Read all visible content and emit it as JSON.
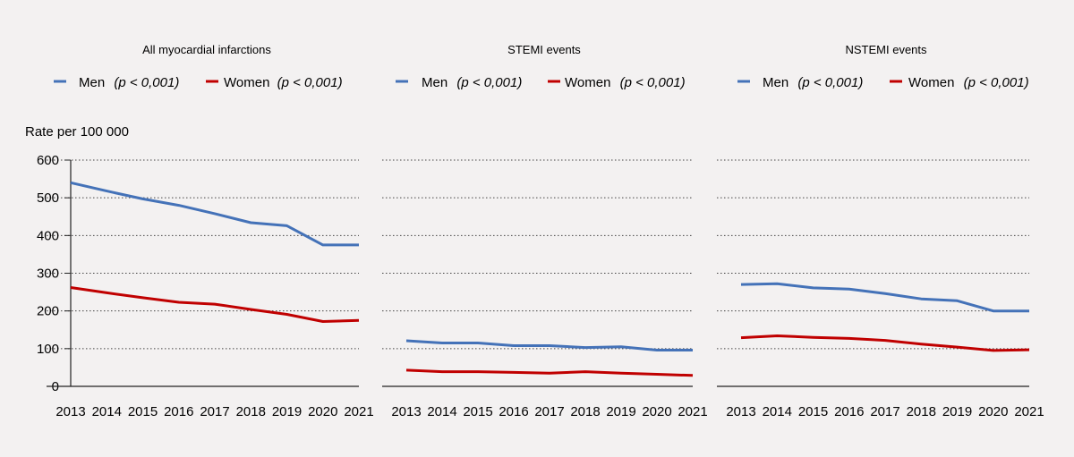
{
  "chart_data": {
    "type": "line",
    "ylabel": "Rate per 100 000",
    "ylim": [
      0,
      600
    ],
    "yticks": [
      0,
      100,
      200,
      300,
      400,
      500,
      600
    ],
    "categories": [
      "2013",
      "2014",
      "2015",
      "2016",
      "2017",
      "2018",
      "2019",
      "2020",
      "2021"
    ],
    "colors": {
      "men": "#4472b8",
      "women": "#c00000"
    },
    "panels": [
      {
        "title": "All myocardial infarctions",
        "legend": {
          "men": "Men",
          "men_p": "(p < 0,001)",
          "women": "Women",
          "women_p": "(p < 0,001)"
        },
        "series": [
          {
            "name": "Men",
            "values": [
              540,
              518,
              497,
              480,
              458,
              434,
              426,
              375,
              375
            ]
          },
          {
            "name": "Women",
            "values": [
              262,
              248,
              235,
              223,
              218,
              204,
              191,
              172,
              175
            ]
          }
        ]
      },
      {
        "title": "STEMI events",
        "legend": {
          "men": "Men",
          "men_p": "(p < 0,001)",
          "women": "Women",
          "women_p": "(p < 0,001)"
        },
        "series": [
          {
            "name": "Men",
            "values": [
              121,
              115,
              115,
              108,
              108,
              103,
              105,
              96,
              96
            ]
          },
          {
            "name": "Women",
            "values": [
              43,
              39,
              39,
              37,
              35,
              39,
              35,
              32,
              29
            ]
          }
        ]
      },
      {
        "title": "NSTEMI events",
        "legend": {
          "men": "Men",
          "men_p": "(p < 0,001)",
          "women": "Women",
          "women_p": "(p < 0,001)"
        },
        "series": [
          {
            "name": "Men",
            "values": [
              270,
              272,
              261,
              258,
              246,
              232,
              227,
              200,
              200
            ]
          },
          {
            "name": "Women",
            "values": [
              129,
              134,
              130,
              127,
              122,
              112,
              104,
              95,
              97
            ]
          }
        ]
      }
    ]
  }
}
